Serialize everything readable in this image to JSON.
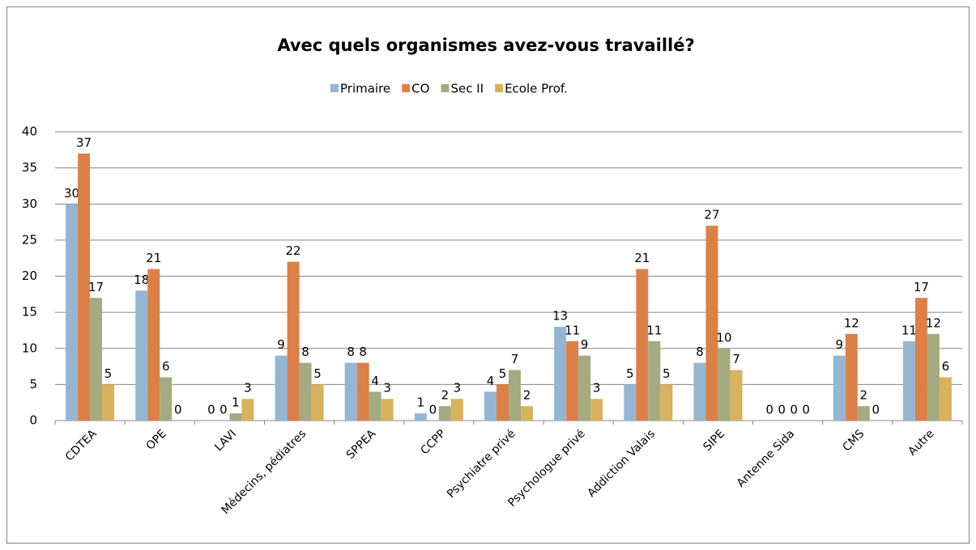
{
  "chart_data": {
    "type": "bar",
    "title": "Avec quels organismes avez-vous travaillé?",
    "categories": [
      "CDTEA",
      "OPE",
      "LAVI",
      "Médecins, pédiatres",
      "SPPEA",
      "CCPP",
      "Psychiatre privé",
      "Psychologue privé",
      "Addiction Valais",
      "SIPE",
      "Antenne Sida",
      "CMS",
      "Autre"
    ],
    "series": [
      {
        "name": "Primaire",
        "color": "#94b6d2",
        "values": [
          30,
          18,
          0,
          9,
          8,
          1,
          4,
          13,
          5,
          8,
          0,
          9,
          11
        ]
      },
      {
        "name": "CO",
        "color": "#dd8047",
        "values": [
          37,
          21,
          0,
          22,
          8,
          0,
          5,
          11,
          21,
          27,
          0,
          12,
          17
        ]
      },
      {
        "name": "Sec II",
        "color": "#a5ab81",
        "values": [
          17,
          6,
          1,
          8,
          4,
          2,
          7,
          9,
          11,
          10,
          0,
          2,
          12
        ]
      },
      {
        "name": "Ecole Prof.",
        "color": "#d8b25c",
        "values": [
          5,
          0,
          3,
          5,
          3,
          3,
          2,
          3,
          5,
          7,
          0,
          0,
          6
        ]
      }
    ],
    "ylim": [
      0,
      40
    ],
    "yticks": [
      0,
      5,
      10,
      15,
      20,
      25,
      30,
      35,
      40
    ],
    "grid": true,
    "legend": "top"
  }
}
